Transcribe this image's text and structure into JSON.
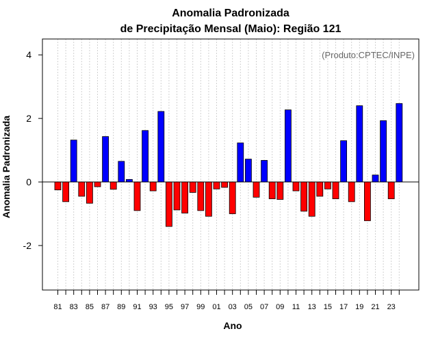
{
  "chart_data": {
    "type": "bar",
    "title": "Anomalia Padronizada",
    "subtitle": "de Precipitação Mensal (Maio): Região 121",
    "xlabel": "Ano",
    "ylabel": "Anomalia Padronizada",
    "annotation": "(Produto:CPTEC/INPE)",
    "ylim": [
      -3.4,
      4.5
    ],
    "yticks": [
      -2,
      0,
      2,
      4
    ],
    "grid": "vertical dotted",
    "positive_color": "#0000ff",
    "negative_color": "#ff0000",
    "xtick_labels": [
      "81",
      "83",
      "85",
      "87",
      "89",
      "91",
      "93",
      "95",
      "97",
      "99",
      "01",
      "03",
      "05",
      "07",
      "09",
      "11",
      "13",
      "15",
      "17",
      "19",
      "21",
      "23"
    ],
    "categories": [
      "1981",
      "1982",
      "1983",
      "1984",
      "1985",
      "1986",
      "1987",
      "1988",
      "1989",
      "1990",
      "1991",
      "1992",
      "1993",
      "1994",
      "1995",
      "1996",
      "1997",
      "1998",
      "1999",
      "2000",
      "2001",
      "2002",
      "2003",
      "2004",
      "2005",
      "2006",
      "2007",
      "2008",
      "2009",
      "2010",
      "2011",
      "2012",
      "2013",
      "2014",
      "2015",
      "2016",
      "2017",
      "2018",
      "2019",
      "2020",
      "2021",
      "2022",
      "2023",
      "2024"
    ],
    "values": [
      -0.25,
      -0.62,
      1.32,
      -0.45,
      -0.67,
      -0.15,
      1.43,
      -0.23,
      0.65,
      0.08,
      -0.9,
      1.62,
      -0.28,
      2.22,
      -1.4,
      -0.88,
      -0.98,
      -0.33,
      -0.9,
      -1.08,
      -0.22,
      -0.17,
      -1.0,
      1.23,
      0.72,
      -0.48,
      0.68,
      -0.53,
      -0.55,
      2.27,
      -0.28,
      -0.92,
      -1.08,
      -0.45,
      -0.22,
      -0.53,
      1.3,
      -0.62,
      2.4,
      -1.22,
      0.22,
      1.93,
      -0.53,
      2.47
    ]
  }
}
